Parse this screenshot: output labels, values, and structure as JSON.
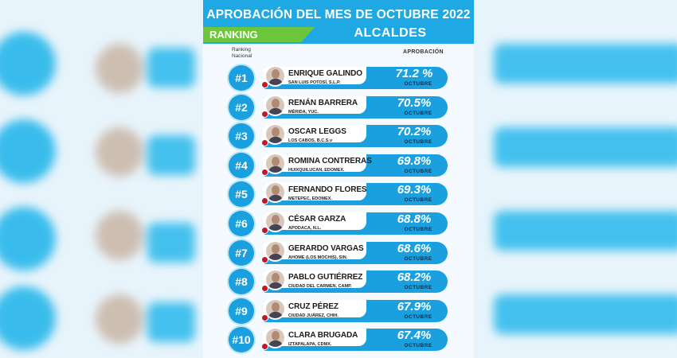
{
  "header": {
    "title": "APROBACIÓN DEL MES DE OCTUBRE 2022",
    "ranking_label": "RANKING",
    "subtitle": "ALCALDES"
  },
  "columns": {
    "ranking_line1": "Ranking",
    "ranking_line2": "Nacional",
    "approval": "APROBACIÓN"
  },
  "colors": {
    "primary_blue": "#1aa0df",
    "green_tab": "#6cc63b",
    "party_red": "#c0182a"
  },
  "rows": [
    {
      "rank": "#1",
      "name": "ENRIQUE GALINDO",
      "city": "SAN LUIS POTOSÍ, S.L.P.",
      "approval": "71.2 %",
      "month": "OCTUBRE"
    },
    {
      "rank": "#2",
      "name": "RENÁN BARRERA",
      "city": "MÉRIDA, YUC.",
      "approval": "70.5%",
      "month": "OCTUBRE"
    },
    {
      "rank": "#3",
      "name": "OSCAR LEGGS",
      "city": "LOS CABOS, B.C.S.v",
      "approval": "70.2%",
      "month": "OCTUBRE"
    },
    {
      "rank": "#4",
      "name": "ROMINA CONTRERAS",
      "city": "HUIXQUILUCAN, EDOMEX.",
      "approval": "69.8%",
      "month": "OCTUBRE"
    },
    {
      "rank": "#5",
      "name": "FERNANDO FLORES",
      "city": "METEPEC, EDOMEX.",
      "approval": "69.3%",
      "month": "OCTUBRE"
    },
    {
      "rank": "#6",
      "name": "CÉSAR GARZA",
      "city": "APODACA, N.L.",
      "approval": "68.8%",
      "month": "OCTUBRE"
    },
    {
      "rank": "#7",
      "name": "GERARDO VARGAS",
      "city": "AHOME (LOS MOCHIS), SIN.",
      "approval": "68.6%",
      "month": "OCTUBRE"
    },
    {
      "rank": "#8",
      "name": "PABLO GUTIÉRREZ",
      "city": "CIUDAD DEL CARMEN, CAMP.",
      "approval": "68.2%",
      "month": "OCTUBRE"
    },
    {
      "rank": "#9",
      "name": "CRUZ PÉREZ",
      "city": "CIUDAD JUÁREZ, CHIH.",
      "approval": "67.9%",
      "month": "OCTUBRE"
    },
    {
      "rank": "#10",
      "name": "CLARA BRUGADA",
      "city": "IZTAPALAPA, CDMX.",
      "approval": "67.4%",
      "month": "OCTUBRE"
    }
  ]
}
